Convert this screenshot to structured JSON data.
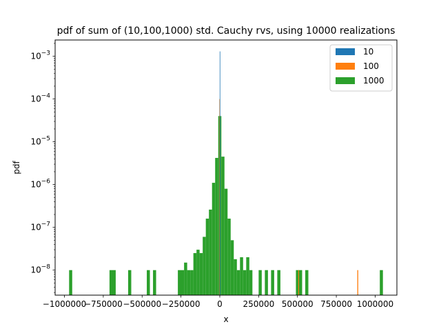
{
  "chart_data": {
    "type": "bar",
    "title": "pdf of sum of (10,100,1000) std. Cauchy rvs, using 10000 realizations",
    "xlabel": "x",
    "ylabel": "pdf",
    "yscale": "log",
    "xlim": [
      -1060000,
      1140000
    ],
    "ylim": [
      2.6e-09,
      0.0024
    ],
    "grid": false,
    "legend_position": "top-right",
    "x_ticks": [
      {
        "value": -1000000,
        "label": "−1000000"
      },
      {
        "value": -750000,
        "label": "−750000"
      },
      {
        "value": -500000,
        "label": "−500000"
      },
      {
        "value": -250000,
        "label": "−250000"
      },
      {
        "value": 0,
        "label": "0"
      },
      {
        "value": 250000,
        "label": "250000"
      },
      {
        "value": 500000,
        "label": "500000"
      },
      {
        "value": 750000,
        "label": "750000"
      },
      {
        "value": 1000000,
        "label": "1000000"
      }
    ],
    "y_ticks": [
      {
        "value": 1e-08,
        "base": "10",
        "exp": "−8"
      },
      {
        "value": 1e-07,
        "base": "10",
        "exp": "−7"
      },
      {
        "value": 1e-06,
        "base": "10",
        "exp": "−6"
      },
      {
        "value": 1e-05,
        "base": "10",
        "exp": "−5"
      },
      {
        "value": 0.0001,
        "base": "10",
        "exp": "−4"
      },
      {
        "value": 0.001,
        "base": "10",
        "exp": "−3"
      }
    ],
    "series": [
      {
        "name": "10",
        "color": "#1f77b4",
        "bins": [
          {
            "x0": -600,
            "x1": 600,
            "y": 0.0013
          }
        ]
      },
      {
        "name": "100",
        "color": "#ff7f0e",
        "bins": [
          {
            "x0": -2500,
            "x1": 2500,
            "y": 0.0001
          },
          {
            "x0": 505000,
            "x1": 510000,
            "y": 1e-08
          },
          {
            "x0": 885000,
            "x1": 891000,
            "y": 1e-08
          }
        ]
      },
      {
        "name": "1000",
        "color": "#2ca02c",
        "bins": [
          {
            "x0": -970000,
            "x1": -950000,
            "y": 1e-08
          },
          {
            "x0": -710000,
            "x1": -670000,
            "y": 1e-08
          },
          {
            "x0": -590000,
            "x1": -570000,
            "y": 1e-08
          },
          {
            "x0": -470000,
            "x1": -450000,
            "y": 1e-08
          },
          {
            "x0": -430000,
            "x1": -410000,
            "y": 1e-08
          },
          {
            "x0": -270000,
            "x1": -230000,
            "y": 1e-08
          },
          {
            "x0": -230000,
            "x1": -210000,
            "y": 1.5e-08
          },
          {
            "x0": -210000,
            "x1": -190000,
            "y": 1e-08
          },
          {
            "x0": -190000,
            "x1": -170000,
            "y": 1e-08
          },
          {
            "x0": -170000,
            "x1": -150000,
            "y": 2.5e-08
          },
          {
            "x0": -150000,
            "x1": -130000,
            "y": 3e-08
          },
          {
            "x0": -130000,
            "x1": -110000,
            "y": 2.5e-08
          },
          {
            "x0": -110000,
            "x1": -90000,
            "y": 6e-08
          },
          {
            "x0": -90000,
            "x1": -70000,
            "y": 1.6e-07
          },
          {
            "x0": -70000,
            "x1": -50000,
            "y": 2.6e-07
          },
          {
            "x0": -50000,
            "x1": -30000,
            "y": 1.1e-06
          },
          {
            "x0": -30000,
            "x1": -10000,
            "y": 4.2e-06
          },
          {
            "x0": -10000,
            "x1": 10000,
            "y": 4e-05
          },
          {
            "x0": 10000,
            "x1": 30000,
            "y": 4.5e-06
          },
          {
            "x0": 30000,
            "x1": 50000,
            "y": 8e-07
          },
          {
            "x0": 50000,
            "x1": 70000,
            "y": 1.6e-07
          },
          {
            "x0": 70000,
            "x1": 90000,
            "y": 5e-08
          },
          {
            "x0": 90000,
            "x1": 110000,
            "y": 1.8e-08
          },
          {
            "x0": 110000,
            "x1": 130000,
            "y": 1e-08
          },
          {
            "x0": 130000,
            "x1": 150000,
            "y": 2e-08
          },
          {
            "x0": 150000,
            "x1": 170000,
            "y": 1e-08
          },
          {
            "x0": 170000,
            "x1": 190000,
            "y": 2e-08
          },
          {
            "x0": 190000,
            "x1": 210000,
            "y": 1e-08
          },
          {
            "x0": 250000,
            "x1": 270000,
            "y": 1e-08
          },
          {
            "x0": 290000,
            "x1": 310000,
            "y": 1e-08
          },
          {
            "x0": 330000,
            "x1": 350000,
            "y": 1e-08
          },
          {
            "x0": 370000,
            "x1": 390000,
            "y": 1e-08
          },
          {
            "x0": 490000,
            "x1": 530000,
            "y": 1e-08
          },
          {
            "x0": 550000,
            "x1": 570000,
            "y": 1e-08
          },
          {
            "x0": 1030000,
            "x1": 1050000,
            "y": 1e-08
          }
        ]
      }
    ]
  }
}
